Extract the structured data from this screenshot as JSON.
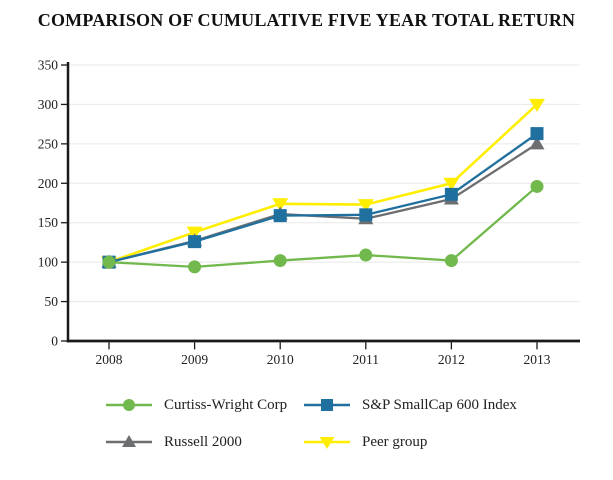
{
  "chart_data": {
    "type": "line",
    "title": "COMPARISON OF CUMULATIVE FIVE YEAR TOTAL RETURN",
    "categories": [
      "2008",
      "2009",
      "2010",
      "2011",
      "2012",
      "2013"
    ],
    "series": [
      {
        "name": "Curtiss-Wright Corp",
        "marker": "circle",
        "color": "#71B84D",
        "values": [
          100,
          94,
          102,
          109,
          102,
          196
        ]
      },
      {
        "name": "S&P SmallCap 600 Index",
        "marker": "square",
        "color": "#1F709E",
        "values": [
          100,
          126,
          159,
          160,
          186,
          263
        ]
      },
      {
        "name": "Russell 2000",
        "marker": "triangle-up",
        "color": "#6D6E71",
        "values": [
          100,
          127,
          161,
          155,
          180,
          250
        ]
      },
      {
        "name": "Peer group",
        "marker": "triangle-down",
        "color": "#FFEE00",
        "values": [
          100,
          138,
          174,
          173,
          200,
          300
        ]
      }
    ],
    "xlabel": "",
    "ylabel": "",
    "ylim": [
      0,
      350
    ],
    "yticks": [
      0,
      50,
      100,
      150,
      200,
      250,
      300,
      350
    ],
    "grid": true,
    "legend_position": "bottom",
    "colors": {
      "axis": "#1a1a1a",
      "gridline": "#e8e8e8",
      "background": "#ffffff",
      "tick_text": "#222222"
    }
  }
}
